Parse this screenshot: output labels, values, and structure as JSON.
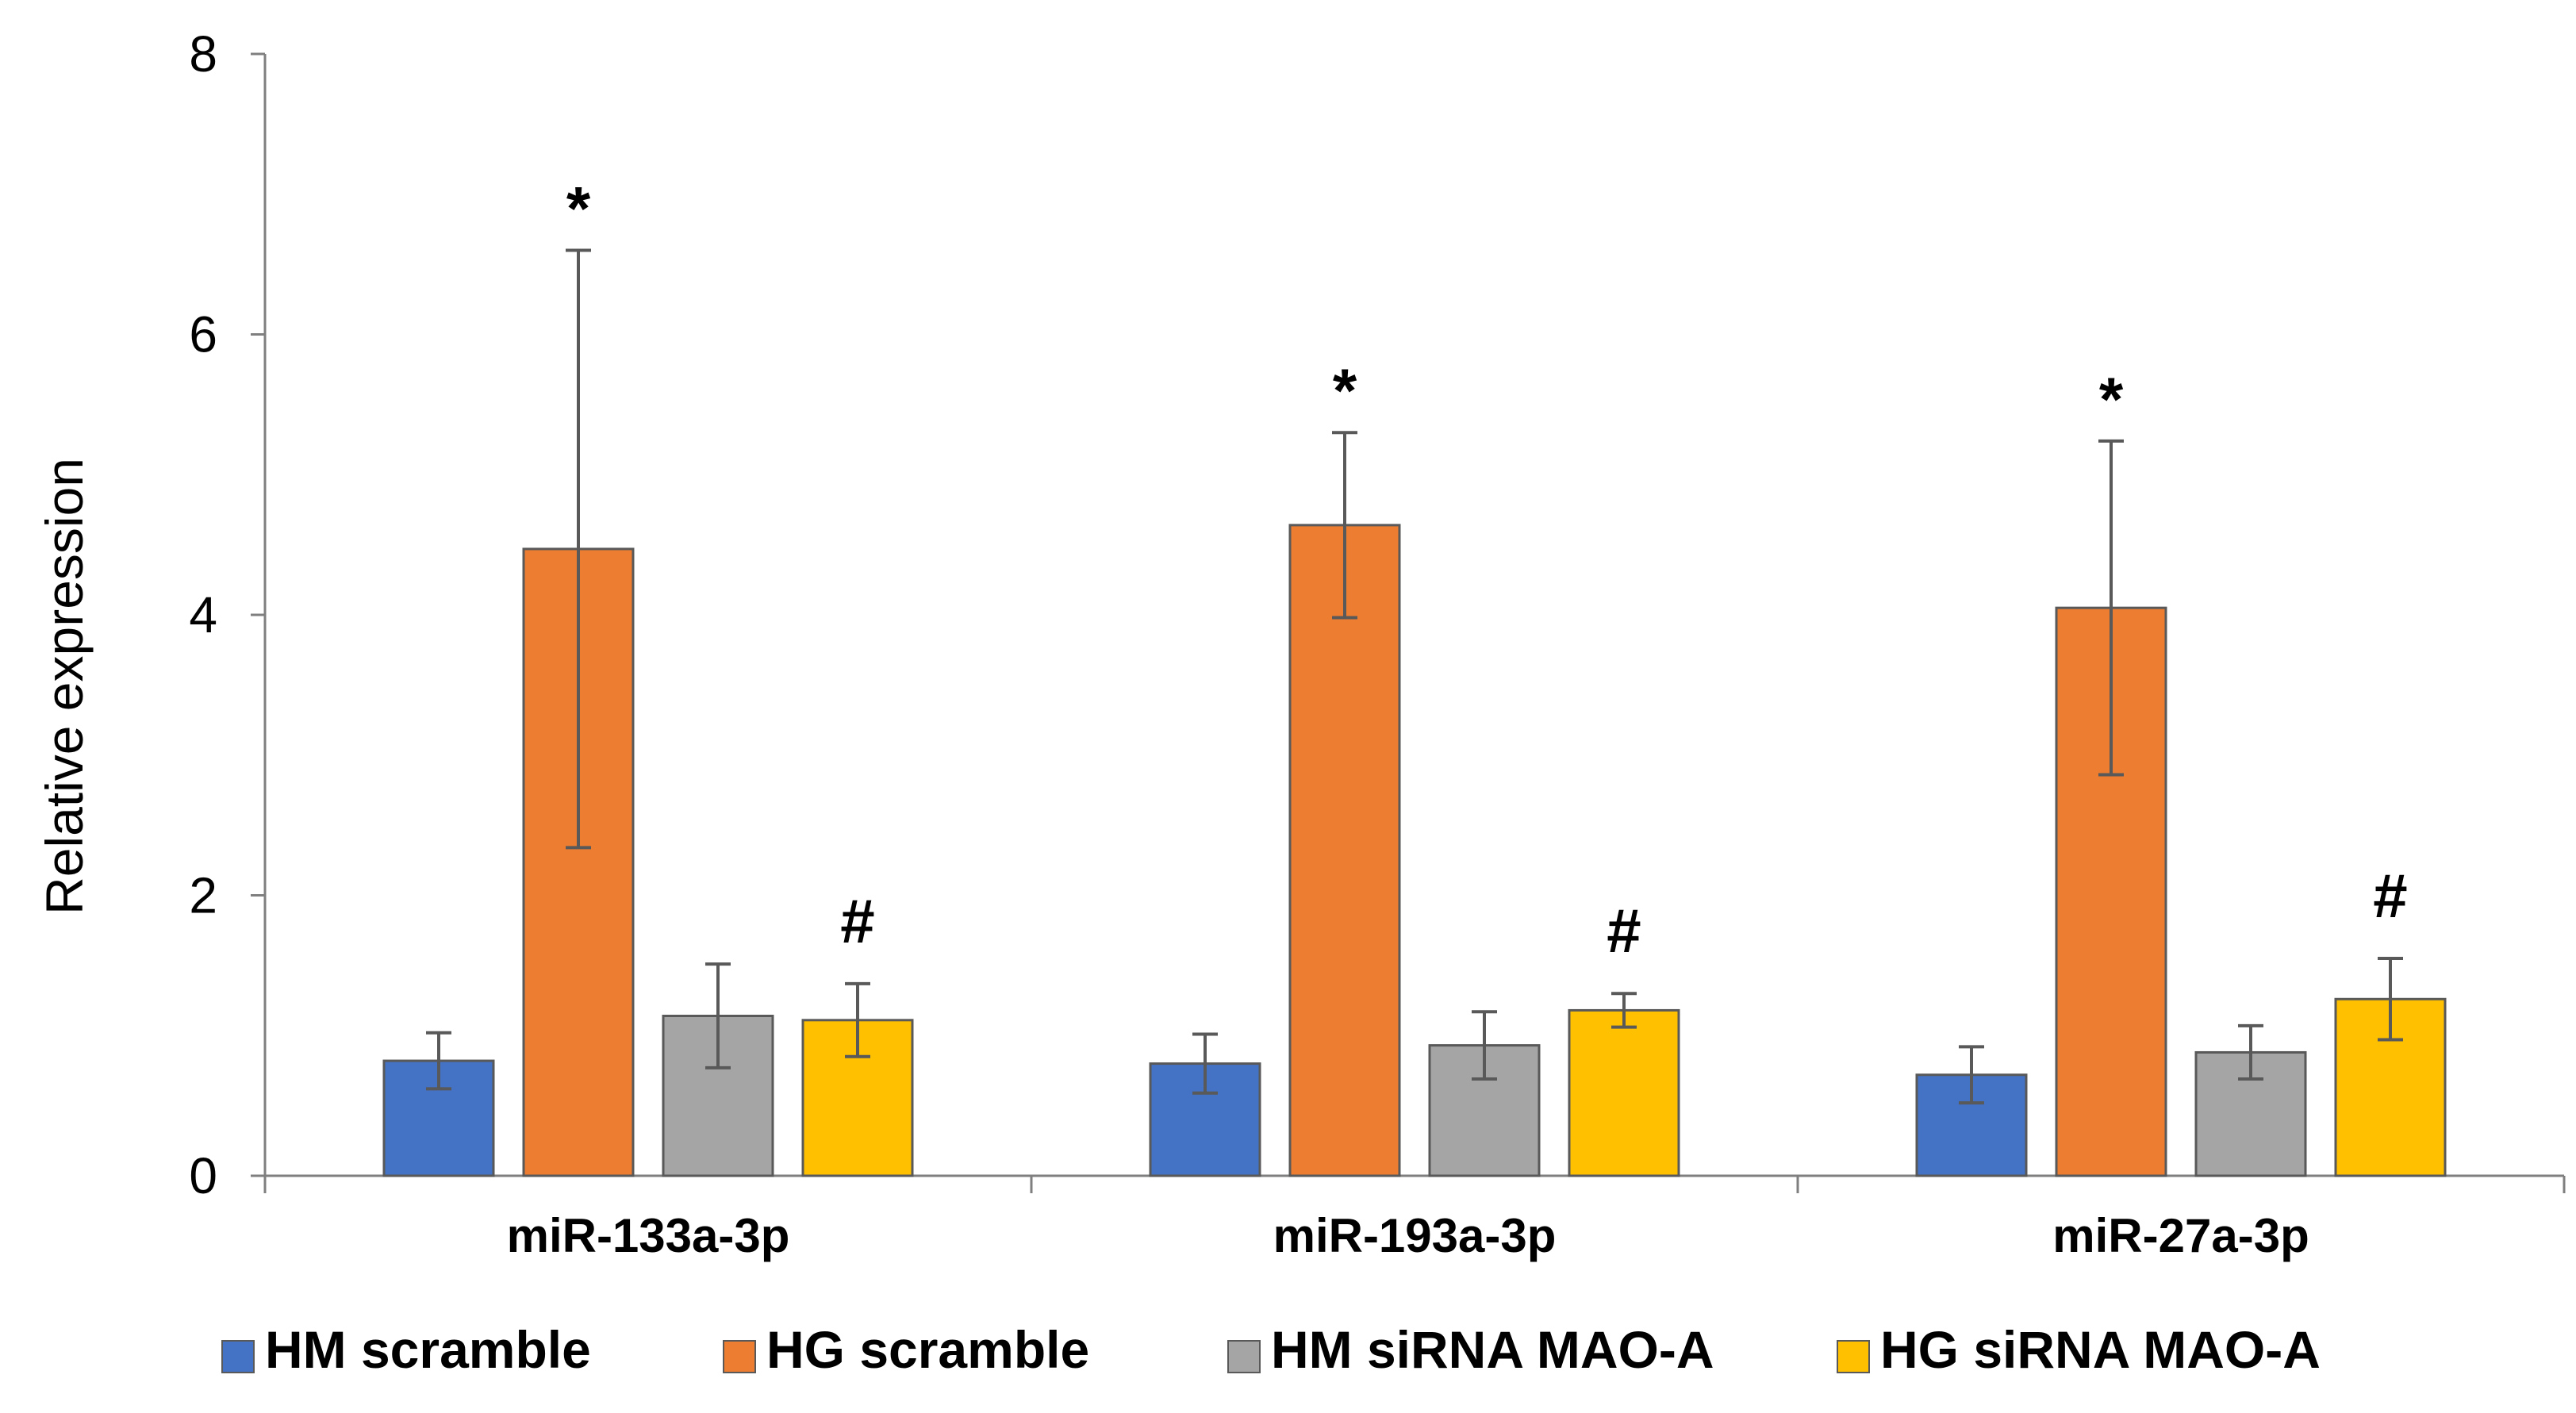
{
  "chart_data": {
    "type": "bar",
    "title": "",
    "xlabel": "",
    "ylabel": "Relative expression",
    "ylim": [
      0,
      8
    ],
    "yticks": [
      0,
      2,
      4,
      6,
      8
    ],
    "grid": false,
    "legend_position": "bottom",
    "categories": [
      "miR-133a-3p",
      "miR-193a-3p",
      "miR-27a-3p"
    ],
    "series": [
      {
        "name": "HM scramble",
        "color": "#4472C4",
        "values": [
          0.82,
          0.8,
          0.72
        ],
        "errors": [
          0.2,
          0.21,
          0.2
        ],
        "annotations": [
          "",
          "",
          ""
        ]
      },
      {
        "name": "HG scramble",
        "color": "#ED7D31",
        "values": [
          4.47,
          4.64,
          4.05
        ],
        "errors": [
          2.13,
          0.66,
          1.19
        ],
        "annotations": [
          "*",
          "*",
          "*"
        ]
      },
      {
        "name": "HM siRNA MAO-A",
        "color": "#A5A5A5",
        "values": [
          1.14,
          0.93,
          0.88
        ],
        "errors": [
          0.37,
          0.24,
          0.19
        ],
        "annotations": [
          "",
          "",
          ""
        ]
      },
      {
        "name": "HG siRNA MAO-A",
        "color": "#FFC000",
        "values": [
          1.11,
          1.18,
          1.26
        ],
        "errors": [
          0.26,
          0.12,
          0.29
        ],
        "annotations": [
          "#",
          "#",
          "#"
        ]
      }
    ]
  }
}
